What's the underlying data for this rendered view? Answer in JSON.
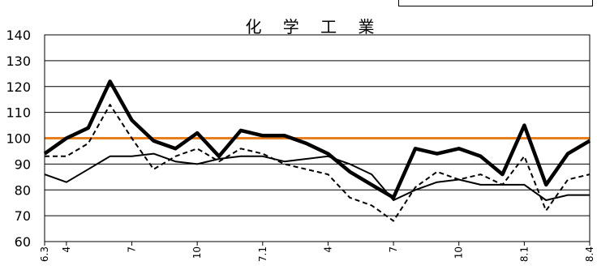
{
  "chart_data": {
    "type": "line",
    "title": "化 学 工 業",
    "xlabel": "",
    "ylabel": "",
    "ylim": [
      60,
      140
    ],
    "yticks": [
      60,
      70,
      80,
      90,
      100,
      110,
      120,
      130,
      140
    ],
    "grid": true,
    "legend": "none",
    "x_tick_labels": [
      {
        "index": 0,
        "label": "6.3"
      },
      {
        "index": 1,
        "label": "4"
      },
      {
        "index": 4,
        "label": "7"
      },
      {
        "index": 7,
        "label": "10"
      },
      {
        "index": 10,
        "label": "7.1"
      },
      {
        "index": 13,
        "label": "4"
      },
      {
        "index": 16,
        "label": "7"
      },
      {
        "index": 19,
        "label": "10"
      },
      {
        "index": 22,
        "label": "8.1"
      },
      {
        "index": 25,
        "label": "8.4"
      }
    ],
    "n_points": 26,
    "reference_line": {
      "value": 100,
      "color": "#e87f1e"
    },
    "series": [
      {
        "style": "thick",
        "color": "#000000",
        "values": [
          94,
          100,
          104,
          122,
          107,
          99,
          96,
          102,
          93,
          103,
          101,
          101,
          98,
          94,
          87,
          82,
          77,
          96,
          94,
          96,
          93,
          86,
          105,
          82,
          94,
          99
        ]
      },
      {
        "style": "dashed",
        "color": "#000000",
        "values": [
          93,
          93,
          98,
          113,
          100,
          88,
          93,
          96,
          91,
          96,
          94,
          90,
          88,
          86,
          77,
          74,
          68,
          81,
          87,
          84,
          86,
          82,
          93,
          72,
          84,
          86
        ]
      },
      {
        "style": "thin",
        "color": "#000000",
        "values": [
          86,
          83,
          88,
          93,
          93,
          94,
          91,
          90,
          92,
          93,
          93,
          91,
          92,
          93,
          90,
          86,
          76,
          80,
          83,
          84,
          82,
          82,
          82,
          76,
          78,
          78
        ]
      }
    ]
  }
}
